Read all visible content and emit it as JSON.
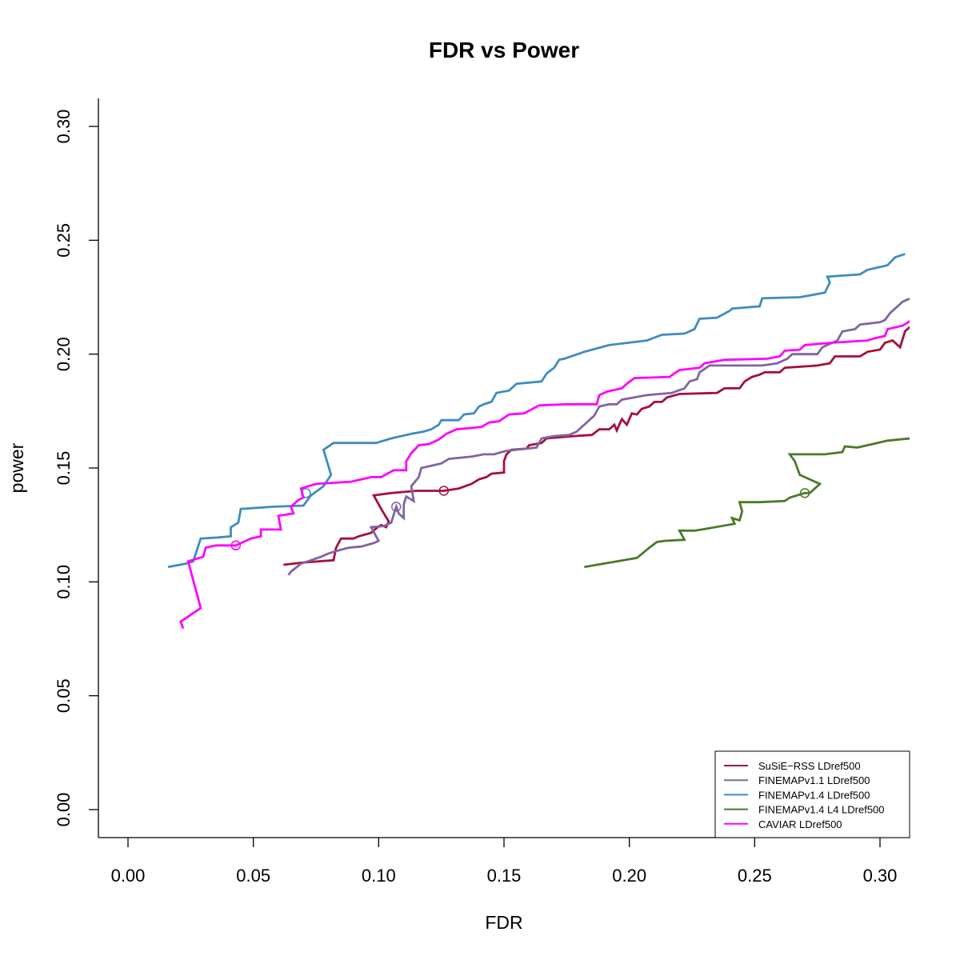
{
  "chart_data": {
    "type": "line",
    "title": "FDR vs Power",
    "xlabel": "FDR",
    "ylabel": "power",
    "xlim": [
      0.0,
      0.31
    ],
    "ylim": [
      0.0,
      0.3
    ],
    "xticks": [
      "0.00",
      "0.05",
      "0.10",
      "0.15",
      "0.20",
      "0.25",
      "0.30"
    ],
    "yticks": [
      "0.00",
      "0.05",
      "0.10",
      "0.15",
      "0.20",
      "0.25",
      "0.30"
    ],
    "grid": false,
    "legend_position": "bottom-right",
    "series": [
      {
        "name": "SuSiE−RSS LDref500",
        "color": "#a50f3c",
        "marker": [
          0.126,
          0.14
        ],
        "points": [
          [
            0.062,
            0.1075
          ],
          [
            0.07,
            0.1085
          ],
          [
            0.082,
            0.1095
          ],
          [
            0.083,
            0.115
          ],
          [
            0.085,
            0.119
          ],
          [
            0.09,
            0.119
          ],
          [
            0.092,
            0.12
          ],
          [
            0.097,
            0.1215
          ],
          [
            0.099,
            0.1235
          ],
          [
            0.101,
            0.125
          ],
          [
            0.103,
            0.124
          ],
          [
            0.104,
            0.1265
          ],
          [
            0.101,
            0.132
          ],
          [
            0.098,
            0.138
          ],
          [
            0.105,
            0.139
          ],
          [
            0.115,
            0.14
          ],
          [
            0.126,
            0.14
          ],
          [
            0.132,
            0.141
          ],
          [
            0.137,
            0.143
          ],
          [
            0.14,
            0.145
          ],
          [
            0.143,
            0.146
          ],
          [
            0.145,
            0.1475
          ],
          [
            0.15,
            0.148
          ],
          [
            0.15,
            0.153
          ],
          [
            0.151,
            0.156
          ],
          [
            0.153,
            0.158
          ],
          [
            0.159,
            0.1585
          ],
          [
            0.16,
            0.16
          ],
          [
            0.165,
            0.161
          ],
          [
            0.167,
            0.163
          ],
          [
            0.178,
            0.164
          ],
          [
            0.185,
            0.1645
          ],
          [
            0.188,
            0.167
          ],
          [
            0.192,
            0.167
          ],
          [
            0.194,
            0.169
          ],
          [
            0.195,
            0.1665
          ],
          [
            0.197,
            0.1715
          ],
          [
            0.199,
            0.169
          ],
          [
            0.201,
            0.174
          ],
          [
            0.203,
            0.1735
          ],
          [
            0.205,
            0.176
          ],
          [
            0.208,
            0.177
          ],
          [
            0.21,
            0.179
          ],
          [
            0.213,
            0.179
          ],
          [
            0.215,
            0.181
          ],
          [
            0.22,
            0.1825
          ],
          [
            0.235,
            0.183
          ],
          [
            0.238,
            0.185
          ],
          [
            0.244,
            0.185
          ],
          [
            0.246,
            0.188
          ],
          [
            0.249,
            0.19
          ],
          [
            0.252,
            0.191
          ],
          [
            0.254,
            0.192
          ],
          [
            0.26,
            0.192
          ],
          [
            0.262,
            0.194
          ],
          [
            0.275,
            0.195
          ],
          [
            0.28,
            0.196
          ],
          [
            0.282,
            0.199
          ],
          [
            0.292,
            0.199
          ],
          [
            0.295,
            0.201
          ],
          [
            0.3,
            0.202
          ],
          [
            0.302,
            0.205
          ],
          [
            0.305,
            0.206
          ],
          [
            0.308,
            0.203
          ],
          [
            0.31,
            0.21
          ],
          [
            0.312,
            0.212
          ]
        ]
      },
      {
        "name": "FINEMAPv1.1 LDref500",
        "color": "#8064a2",
        "marker": [
          0.107,
          0.133
        ],
        "points": [
          [
            0.064,
            0.103
          ],
          [
            0.065,
            0.1045
          ],
          [
            0.069,
            0.108
          ],
          [
            0.073,
            0.1095
          ],
          [
            0.077,
            0.111
          ],
          [
            0.08,
            0.1125
          ],
          [
            0.083,
            0.1135
          ],
          [
            0.088,
            0.115
          ],
          [
            0.093,
            0.1155
          ],
          [
            0.098,
            0.117
          ],
          [
            0.1,
            0.118
          ],
          [
            0.097,
            0.124
          ],
          [
            0.102,
            0.1245
          ],
          [
            0.105,
            0.126
          ],
          [
            0.107,
            0.133
          ],
          [
            0.108,
            0.13
          ],
          [
            0.11,
            0.128
          ],
          [
            0.11,
            0.134
          ],
          [
            0.111,
            0.1375
          ],
          [
            0.114,
            0.1355
          ],
          [
            0.113,
            0.142
          ],
          [
            0.116,
            0.146
          ],
          [
            0.117,
            0.15
          ],
          [
            0.125,
            0.152
          ],
          [
            0.128,
            0.154
          ],
          [
            0.137,
            0.155
          ],
          [
            0.142,
            0.156
          ],
          [
            0.146,
            0.156
          ],
          [
            0.149,
            0.157
          ],
          [
            0.151,
            0.1575
          ],
          [
            0.163,
            0.159
          ],
          [
            0.165,
            0.163
          ],
          [
            0.17,
            0.164
          ],
          [
            0.176,
            0.1645
          ],
          [
            0.179,
            0.166
          ],
          [
            0.183,
            0.17
          ],
          [
            0.186,
            0.173
          ],
          [
            0.188,
            0.177
          ],
          [
            0.192,
            0.178
          ],
          [
            0.195,
            0.178
          ],
          [
            0.197,
            0.18
          ],
          [
            0.202,
            0.181
          ],
          [
            0.207,
            0.182
          ],
          [
            0.217,
            0.183
          ],
          [
            0.222,
            0.185
          ],
          [
            0.224,
            0.188
          ],
          [
            0.227,
            0.189
          ],
          [
            0.228,
            0.192
          ],
          [
            0.23,
            0.1935
          ],
          [
            0.232,
            0.195
          ],
          [
            0.242,
            0.195
          ],
          [
            0.253,
            0.195
          ],
          [
            0.259,
            0.196
          ],
          [
            0.263,
            0.198
          ],
          [
            0.265,
            0.2
          ],
          [
            0.275,
            0.2
          ],
          [
            0.277,
            0.203
          ],
          [
            0.283,
            0.206
          ],
          [
            0.285,
            0.21
          ],
          [
            0.29,
            0.211
          ],
          [
            0.292,
            0.213
          ],
          [
            0.3,
            0.214
          ],
          [
            0.302,
            0.215
          ],
          [
            0.304,
            0.218
          ],
          [
            0.307,
            0.221
          ],
          [
            0.309,
            0.223
          ],
          [
            0.311,
            0.224
          ],
          [
            0.313,
            0.2245
          ]
        ]
      },
      {
        "name": "FINEMAPv1.4 LDref500",
        "color": "#3e8cbf",
        "marker": [
          0.071,
          0.139
        ],
        "points": [
          [
            0.016,
            0.1065
          ],
          [
            0.023,
            0.108
          ],
          [
            0.026,
            0.109
          ],
          [
            0.029,
            0.119
          ],
          [
            0.036,
            0.1195
          ],
          [
            0.041,
            0.12
          ],
          [
            0.041,
            0.124
          ],
          [
            0.044,
            0.126
          ],
          [
            0.045,
            0.132
          ],
          [
            0.058,
            0.133
          ],
          [
            0.07,
            0.1335
          ],
          [
            0.073,
            0.138
          ],
          [
            0.078,
            0.142
          ],
          [
            0.081,
            0.147
          ],
          [
            0.078,
            0.158
          ],
          [
            0.082,
            0.161
          ],
          [
            0.09,
            0.161
          ],
          [
            0.099,
            0.161
          ],
          [
            0.105,
            0.163
          ],
          [
            0.113,
            0.165
          ],
          [
            0.118,
            0.166
          ],
          [
            0.121,
            0.167
          ],
          [
            0.124,
            0.169
          ],
          [
            0.125,
            0.171
          ],
          [
            0.132,
            0.171
          ],
          [
            0.134,
            0.1735
          ],
          [
            0.138,
            0.174
          ],
          [
            0.14,
            0.177
          ],
          [
            0.142,
            0.178
          ],
          [
            0.145,
            0.179
          ],
          [
            0.147,
            0.183
          ],
          [
            0.152,
            0.184
          ],
          [
            0.155,
            0.187
          ],
          [
            0.165,
            0.188
          ],
          [
            0.167,
            0.1915
          ],
          [
            0.17,
            0.194
          ],
          [
            0.172,
            0.1975
          ],
          [
            0.174,
            0.198
          ],
          [
            0.182,
            0.201
          ],
          [
            0.192,
            0.204
          ],
          [
            0.207,
            0.206
          ],
          [
            0.213,
            0.2085
          ],
          [
            0.222,
            0.209
          ],
          [
            0.226,
            0.211
          ],
          [
            0.228,
            0.2155
          ],
          [
            0.235,
            0.216
          ],
          [
            0.24,
            0.219
          ],
          [
            0.241,
            0.22
          ],
          [
            0.252,
            0.221
          ],
          [
            0.253,
            0.2245
          ],
          [
            0.268,
            0.225
          ],
          [
            0.273,
            0.226
          ],
          [
            0.278,
            0.227
          ],
          [
            0.28,
            0.2315
          ],
          [
            0.279,
            0.234
          ],
          [
            0.285,
            0.2345
          ],
          [
            0.292,
            0.235
          ],
          [
            0.295,
            0.237
          ],
          [
            0.303,
            0.239
          ],
          [
            0.306,
            0.2425
          ],
          [
            0.31,
            0.244
          ]
        ]
      },
      {
        "name": "FINEMAPv1.4 L4 LDref500",
        "color": "#4a7a28",
        "marker": [
          0.27,
          0.139
        ],
        "points": [
          [
            0.182,
            0.1065
          ],
          [
            0.195,
            0.109
          ],
          [
            0.203,
            0.1105
          ],
          [
            0.208,
            0.115
          ],
          [
            0.211,
            0.1175
          ],
          [
            0.214,
            0.118
          ],
          [
            0.222,
            0.1185
          ],
          [
            0.22,
            0.1225
          ],
          [
            0.226,
            0.1225
          ],
          [
            0.229,
            0.123
          ],
          [
            0.242,
            0.1255
          ],
          [
            0.241,
            0.128
          ],
          [
            0.244,
            0.127
          ],
          [
            0.245,
            0.131
          ],
          [
            0.244,
            0.135
          ],
          [
            0.252,
            0.135
          ],
          [
            0.262,
            0.1355
          ],
          [
            0.264,
            0.137
          ],
          [
            0.27,
            0.139
          ],
          [
            0.272,
            0.139
          ],
          [
            0.276,
            0.143
          ],
          [
            0.268,
            0.147
          ],
          [
            0.266,
            0.153
          ],
          [
            0.264,
            0.156
          ],
          [
            0.278,
            0.156
          ],
          [
            0.285,
            0.157
          ],
          [
            0.286,
            0.1595
          ],
          [
            0.291,
            0.159
          ],
          [
            0.297,
            0.1605
          ],
          [
            0.303,
            0.162
          ],
          [
            0.312,
            0.163
          ]
        ]
      },
      {
        "name": "CAVIAR LDref500",
        "color": "#ff00ff",
        "marker": [
          0.043,
          0.116
        ],
        "points": [
          [
            0.022,
            0.0795
          ],
          [
            0.021,
            0.0825
          ],
          [
            0.029,
            0.0885
          ],
          [
            0.024,
            0.109
          ],
          [
            0.03,
            0.111
          ],
          [
            0.031,
            0.115
          ],
          [
            0.035,
            0.116
          ],
          [
            0.043,
            0.116
          ],
          [
            0.049,
            0.119
          ],
          [
            0.053,
            0.12
          ],
          [
            0.053,
            0.123
          ],
          [
            0.061,
            0.123
          ],
          [
            0.06,
            0.129
          ],
          [
            0.066,
            0.13
          ],
          [
            0.065,
            0.133
          ],
          [
            0.068,
            0.136
          ],
          [
            0.07,
            0.137
          ],
          [
            0.069,
            0.141
          ],
          [
            0.075,
            0.143
          ],
          [
            0.089,
            0.144
          ],
          [
            0.097,
            0.146
          ],
          [
            0.101,
            0.146
          ],
          [
            0.106,
            0.149
          ],
          [
            0.111,
            0.149
          ],
          [
            0.111,
            0.153
          ],
          [
            0.113,
            0.1565
          ],
          [
            0.116,
            0.16
          ],
          [
            0.12,
            0.1605
          ],
          [
            0.124,
            0.1625
          ],
          [
            0.127,
            0.165
          ],
          [
            0.131,
            0.167
          ],
          [
            0.141,
            0.168
          ],
          [
            0.144,
            0.17
          ],
          [
            0.148,
            0.1705
          ],
          [
            0.152,
            0.1735
          ],
          [
            0.158,
            0.174
          ],
          [
            0.164,
            0.1775
          ],
          [
            0.175,
            0.178
          ],
          [
            0.187,
            0.178
          ],
          [
            0.188,
            0.182
          ],
          [
            0.191,
            0.1835
          ],
          [
            0.197,
            0.185
          ],
          [
            0.199,
            0.187
          ],
          [
            0.202,
            0.1895
          ],
          [
            0.216,
            0.19
          ],
          [
            0.22,
            0.193
          ],
          [
            0.228,
            0.194
          ],
          [
            0.23,
            0.196
          ],
          [
            0.238,
            0.1975
          ],
          [
            0.255,
            0.198
          ],
          [
            0.26,
            0.199
          ],
          [
            0.262,
            0.2015
          ],
          [
            0.268,
            0.202
          ],
          [
            0.27,
            0.204
          ],
          [
            0.281,
            0.205
          ],
          [
            0.295,
            0.206
          ],
          [
            0.298,
            0.207
          ],
          [
            0.302,
            0.208
          ],
          [
            0.303,
            0.211
          ],
          [
            0.309,
            0.2125
          ],
          [
            0.312,
            0.2145
          ]
        ]
      }
    ]
  }
}
